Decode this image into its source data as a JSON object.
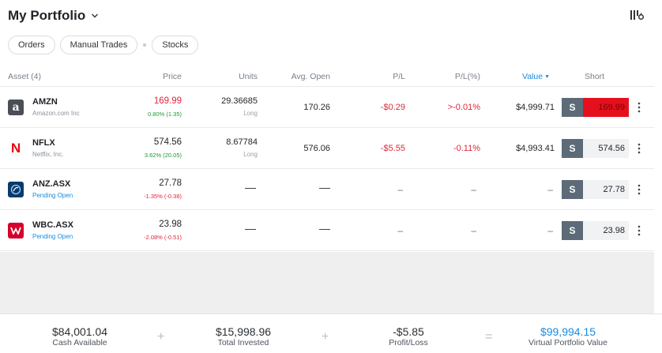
{
  "header": {
    "title": "My Portfolio"
  },
  "filters": [
    "Orders",
    "Manual Trades",
    "Stocks"
  ],
  "columns": {
    "asset": "Asset (4)",
    "price": "Price",
    "units": "Units",
    "avg_open": "Avg. Open",
    "pl": "P/L",
    "pl_pct": "P/L(%)",
    "value": "Value",
    "short": "Short"
  },
  "rows": [
    {
      "symbol": "AMZN",
      "name": "Amazon.com Inc",
      "price": "169.99",
      "price_change": "0.80% (1.35)",
      "units": "29.36685",
      "units_side": "Long",
      "avg_open": "170.26",
      "pl": "-$0.29",
      "pl_pct": ">-0.01%",
      "value": "$4,999.71",
      "short_label": "S",
      "short_price": "169.99",
      "price_color": "#e0263a",
      "change_color": "#1a9a2e"
    },
    {
      "symbol": "NFLX",
      "name": "Netflix, Inc.",
      "price": "574.56",
      "price_change": "3.62% (20.05)",
      "units": "8.67784",
      "units_side": "Long",
      "avg_open": "576.06",
      "pl": "-$5.55",
      "pl_pct": "-0.11%",
      "value": "$4,993.41",
      "short_label": "S",
      "short_price": "574.56",
      "price_color": "#1f2328",
      "change_color": "#1a9a2e"
    },
    {
      "symbol": "ANZ.ASX",
      "name": "Pending Open",
      "price": "27.78",
      "price_change": "-1.35% (-0.38)",
      "units": "—",
      "avg_open": "—",
      "pl": "–",
      "pl_pct": "–",
      "value": "–",
      "short_label": "S",
      "short_price": "27.78",
      "price_color": "#1f2328",
      "change_color": "#e0263a"
    },
    {
      "symbol": "WBC.ASX",
      "name": "Pending Open",
      "price": "23.98",
      "price_change": "-2.08% (-0.51)",
      "units": "—",
      "avg_open": "—",
      "pl": "–",
      "pl_pct": "–",
      "value": "–",
      "short_label": "S",
      "short_price": "23.98",
      "price_color": "#1f2328",
      "change_color": "#e0263a"
    }
  ],
  "footer": {
    "cash_amount": "$84,001.04",
    "cash_label": "Cash Available",
    "invested_amount": "$15,998.96",
    "invested_label": "Total Invested",
    "pl_amount": "-$5.85",
    "pl_label": "Profit/Loss",
    "portfolio_amount": "$99,994.15",
    "portfolio_label": "Virtual Portfolio Value",
    "op_plus": "+",
    "op_equals": "="
  },
  "icons": {
    "title_chevron": "chevron-down-icon",
    "settings": "columns-settings-icon",
    "row_menu": "more-vertical-icon"
  },
  "colors": {
    "accent": "#1a8be0",
    "negative": "#e0263a",
    "positive": "#1a9a2e",
    "short_button": "#5d6b78",
    "short_highlight": "#e5101d"
  }
}
